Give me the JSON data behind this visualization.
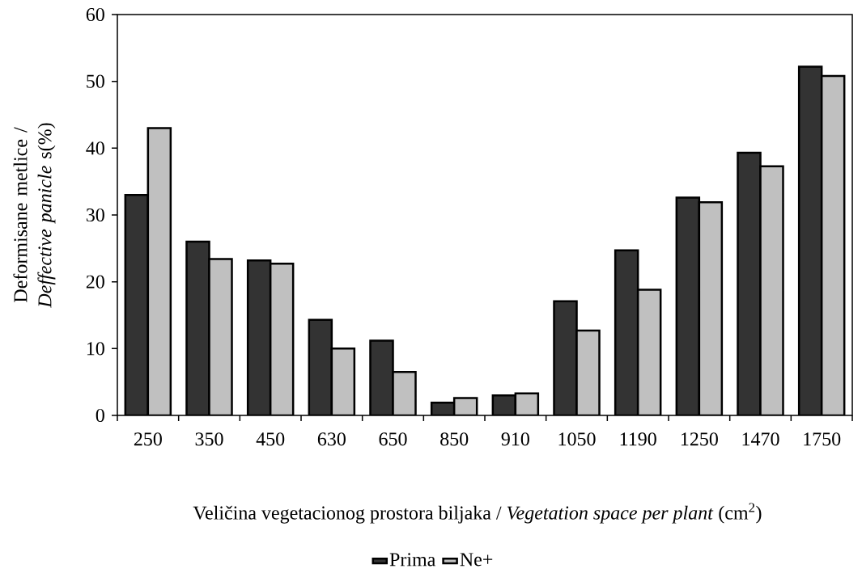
{
  "chart_data": {
    "type": "bar",
    "xlabel": "Veličina vegetacionog prostora biljaka / *Vegetation space per plant*  (cm$^{2}$)",
    "ylabel": "Deformisane metlice / *Deffective panicle*  s(%)",
    "categories": [
      "250",
      "350",
      "450",
      "630",
      "650",
      "850",
      "910",
      "1050",
      "1190",
      "1250",
      "1470",
      "1750"
    ],
    "series": [
      {
        "name": "Prima",
        "color": "#333333",
        "values": [
          33.0,
          26.0,
          23.2,
          14.3,
          11.2,
          1.9,
          3.0,
          17.1,
          24.7,
          32.6,
          39.3,
          52.2
        ]
      },
      {
        "name": "Ne+",
        "color": "#c0c0c0",
        "values": [
          43.0,
          23.4,
          22.7,
          10.0,
          6.5,
          2.6,
          3.3,
          12.7,
          18.8,
          31.9,
          37.3,
          50.8
        ]
      }
    ],
    "ylim": [
      0,
      60
    ],
    "yticks": [
      0,
      10,
      20,
      30,
      40,
      50,
      60
    ],
    "legend": "bottom"
  }
}
